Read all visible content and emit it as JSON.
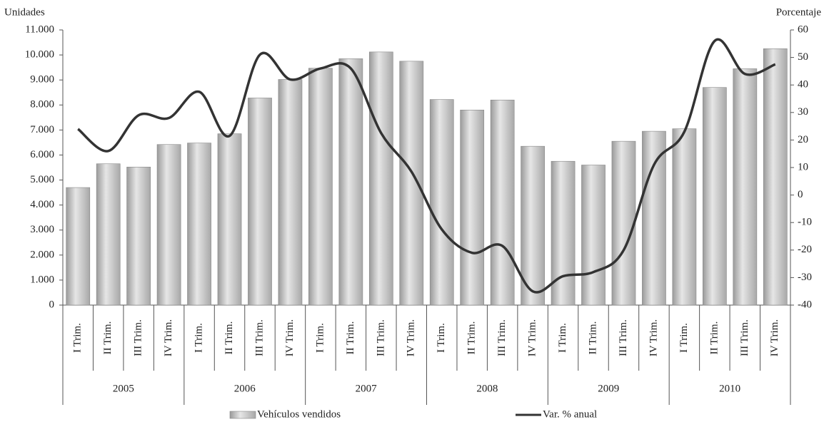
{
  "chart_data": {
    "type": "bar-line",
    "y_label": "Unidades",
    "y2_label": "Porcentaje",
    "categories": [
      "I Trim.",
      "II Trim.",
      "III Trim.",
      "IV Trim.",
      "I Trim.",
      "II Trim.",
      "III Trim.",
      "IV Trim.",
      "I Trim.",
      "II Trim.",
      "III Trim.",
      "IV Trim.",
      "I Trim.",
      "II Trim.",
      "III Trim.",
      "IV Trim.",
      "I Trim.",
      "II Trim.",
      "III Trim.",
      "IV Trim.",
      "I Trim.",
      "II Trim.",
      "III Trim.",
      "IV Trim."
    ],
    "groups": [
      "2005",
      "2006",
      "2007",
      "2008",
      "2009",
      "2010"
    ],
    "series": [
      {
        "name": "Vehículos vendidos",
        "type": "bar",
        "color": "#c8c8c8",
        "values": [
          4700,
          5650,
          5520,
          6420,
          6480,
          6850,
          8280,
          9020,
          9470,
          9850,
          10120,
          9750,
          8220,
          7800,
          8200,
          6350,
          5750,
          5600,
          6550,
          6950,
          7050,
          8700,
          9450,
          10250
        ]
      },
      {
        "name": "Var. % anual",
        "type": "line",
        "axis": "y2",
        "color": "#333333",
        "values": [
          24,
          16,
          29,
          28,
          37.5,
          21.5,
          51,
          42,
          46,
          46,
          22.5,
          8.5,
          -12.5,
          -21,
          -18.5,
          -35,
          -29.5,
          -28,
          -20,
          11,
          23,
          56,
          44,
          47.5
        ]
      }
    ],
    "ylim": [
      0,
      11000
    ],
    "yticks": [
      0,
      {
        "value": 1000,
        "label": "1.000"
      },
      {
        "value": 2000,
        "label": "2.000"
      },
      {
        "value": 3000,
        "label": "3.000"
      },
      {
        "value": 4000,
        "label": "4.000"
      },
      {
        "value": 5000,
        "label": "5.000"
      },
      {
        "value": 6000,
        "label": "6.000"
      },
      {
        "value": 7000,
        "label": "7.000"
      },
      {
        "value": 8000,
        "label": "8.000"
      },
      {
        "value": 9000,
        "label": "9.000"
      },
      {
        "value": 10000,
        "label": "10.000"
      },
      {
        "value": 11000,
        "label": "11.000"
      }
    ],
    "y2lim": [
      -40,
      60
    ],
    "y2ticks": [
      -40,
      -30,
      -20,
      -10,
      0,
      10,
      20,
      30,
      40,
      50,
      60
    ],
    "legend": "bottom"
  }
}
